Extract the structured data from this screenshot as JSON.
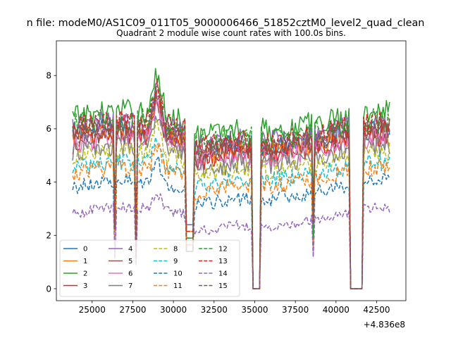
{
  "chart_data": {
    "type": "line",
    "suptitle": "n file: modeM0/AS1C09_011T05_9000006466_51852cztM0_level2_quad_clean",
    "title": "Quadrant 2 module wise count rates with 100.0s bins.",
    "xlabel": "",
    "ylabel": "",
    "x_offset_label": "+4.836e8",
    "xlim": [
      22800,
      44300
    ],
    "ylim": [
      -0.45,
      9.3
    ],
    "xticks": [
      25000,
      27500,
      30000,
      32500,
      35000,
      37500,
      40000,
      42500
    ],
    "xtick_labels": [
      "25000",
      "27500",
      "30000",
      "32500",
      "35000",
      "37500",
      "40000",
      "42500"
    ],
    "yticks": [
      0,
      2,
      4,
      6,
      8
    ],
    "ytick_labels": [
      "0",
      "2",
      "4",
      "6",
      "8"
    ],
    "x_start": 23800,
    "x_end": 43300,
    "x_step": 100,
    "features": {
      "gaps": [
        {
          "from": 30800,
          "to": 31200,
          "dip_to": 1.4
        },
        {
          "from": 34900,
          "to": 35300,
          "dip_to": 0
        },
        {
          "from": 40900,
          "to": 41600,
          "dip_to": 0
        }
      ],
      "narrow_dips": [
        {
          "x": 26400,
          "depth": 0.6
        },
        {
          "x": 27700,
          "depth": 0.75
        },
        {
          "x": 38600,
          "depth": 0.6
        }
      ],
      "flare": {
        "center": 29000,
        "width": 700,
        "peak": 1.35
      }
    },
    "legend": {
      "position": "lower-left",
      "ncol": 4
    },
    "series": [
      {
        "name": "0",
        "color": "#1f77b4",
        "style": "solid",
        "base": 5.7
      },
      {
        "name": "1",
        "color": "#ff7f0e",
        "style": "solid",
        "base": 5.5
      },
      {
        "name": "2",
        "color": "#2ca02c",
        "style": "solid",
        "base": 6.3
      },
      {
        "name": "3",
        "color": "#d62728",
        "style": "solid",
        "base": 5.4
      },
      {
        "name": "4",
        "color": "#9467bd",
        "style": "solid",
        "base": 5.9
      },
      {
        "name": "5",
        "color": "#8c564b",
        "style": "solid",
        "base": 5.6
      },
      {
        "name": "6",
        "color": "#e377c2",
        "style": "solid",
        "base": 5.3
      },
      {
        "name": "7",
        "color": "#7f7f7f",
        "style": "solid",
        "base": 5.0
      },
      {
        "name": "8",
        "color": "#bcbd22",
        "style": "dashed",
        "base": 4.8
      },
      {
        "name": "9",
        "color": "#17becf",
        "style": "dashed",
        "base": 4.4
      },
      {
        "name": "10",
        "color": "#1f77b4",
        "style": "dashed",
        "base": 3.7
      },
      {
        "name": "11",
        "color": "#ff7f0e",
        "style": "dashed",
        "base": 4.2
      },
      {
        "name": "12",
        "color": "#2ca02c",
        "style": "dashed",
        "base": 6.0
      },
      {
        "name": "13",
        "color": "#d62728",
        "style": "dashed",
        "base": 5.9
      },
      {
        "name": "14",
        "color": "#9467bd",
        "style": "dashed",
        "base": 2.7
      },
      {
        "name": "15",
        "color": "#8c564b",
        "style": "dashed",
        "base": 5.7
      }
    ]
  }
}
